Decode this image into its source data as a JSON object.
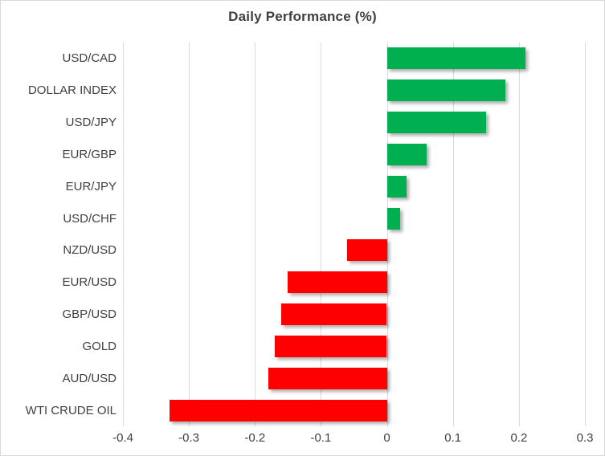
{
  "chart_data": {
    "type": "bar",
    "orientation": "horizontal",
    "title": "Daily Performance (%)",
    "categories": [
      "USD/CAD",
      "DOLLAR INDEX",
      "USD/JPY",
      "EUR/GBP",
      "EUR/JPY",
      "USD/CHF",
      "NZD/USD",
      "EUR/USD",
      "GBP/USD",
      "GOLD",
      "AUD/USD",
      "WTI CRUDE OIL"
    ],
    "values": [
      0.21,
      0.18,
      0.15,
      0.06,
      0.03,
      0.02,
      -0.06,
      -0.15,
      -0.16,
      -0.17,
      -0.18,
      -0.33
    ],
    "xlim": [
      -0.4,
      0.3
    ],
    "x_ticks": [
      -0.4,
      -0.3,
      -0.2,
      -0.1,
      0,
      0.1,
      0.2,
      0.3
    ],
    "x_tick_labels": [
      "-0.4",
      "-0.3",
      "-0.2",
      "-0.1",
      "0",
      "0.1",
      "0.2",
      "0.3"
    ],
    "grid": "vertical",
    "legend": "none",
    "colors": {
      "positive": "#00B050",
      "negative": "#FF0000",
      "gridline": "#D9D9D9",
      "text": "#404040",
      "title": "#3F3F3F",
      "border": "#D9D9D9",
      "background": "#FFFFFF"
    }
  }
}
